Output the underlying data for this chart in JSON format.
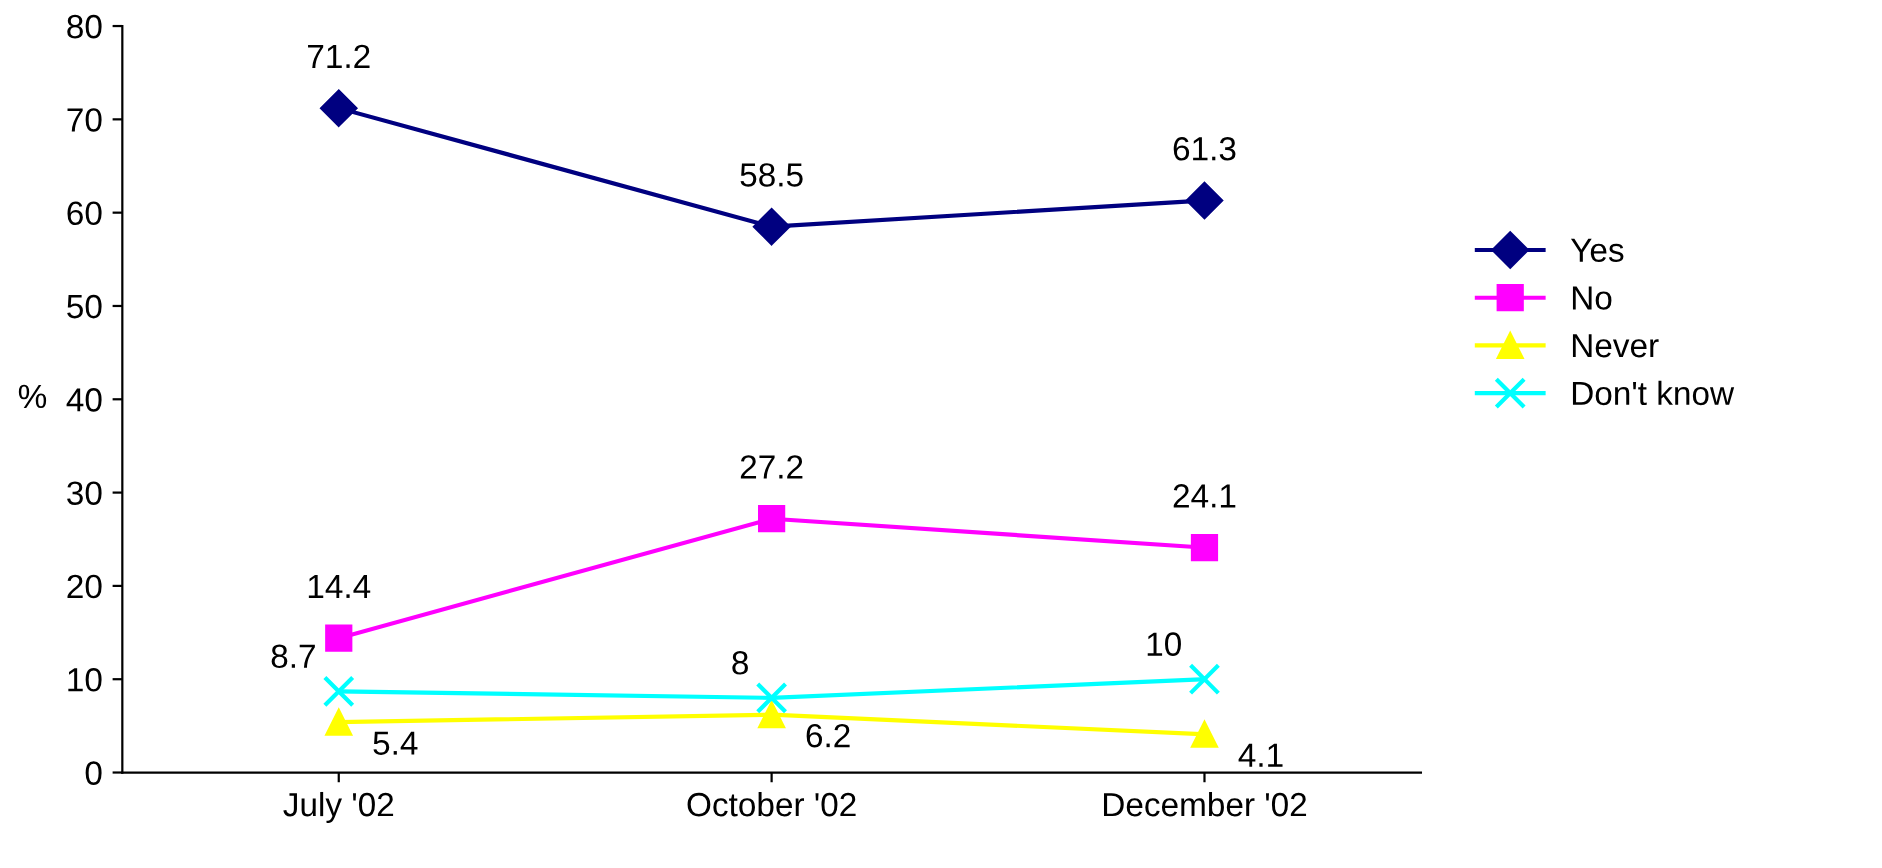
{
  "chart_data": {
    "type": "line",
    "ylabel": "%",
    "categories": [
      "July '02",
      "October '02",
      "December '02"
    ],
    "series": [
      {
        "name": "Yes",
        "color": "#000080",
        "marker": "diamond",
        "values": [
          71.2,
          58.5,
          61.3
        ]
      },
      {
        "name": "No",
        "color": "#ff00ff",
        "marker": "square",
        "values": [
          14.4,
          27.2,
          24.1
        ]
      },
      {
        "name": "Never",
        "color": "#ffff00",
        "marker": "triangle",
        "values": [
          5.4,
          6.2,
          4.1
        ]
      },
      {
        "name": "Don't know",
        "color": "#00ffff",
        "marker": "cross",
        "values": [
          8.7,
          8,
          10
        ]
      }
    ],
    "ylim": [
      0,
      80
    ],
    "yticks": [
      0,
      10,
      20,
      30,
      40,
      50,
      60,
      70,
      80
    ],
    "grid": false,
    "legend": "right",
    "data_labels": true,
    "line_style": "solid"
  }
}
